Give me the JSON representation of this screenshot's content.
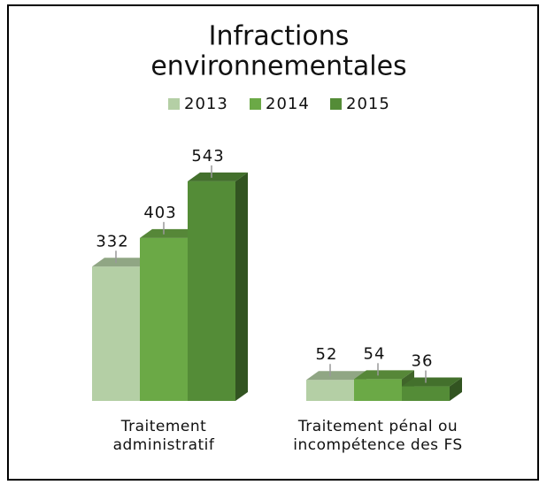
{
  "chart_data": {
    "type": "bar3d",
    "title": [
      "Infractions",
      "environnementales"
    ],
    "categories": [
      "Traitement administratif",
      "Traitement pénal ou incompétence des FS"
    ],
    "series": [
      {
        "name": "2013",
        "color": "#b4cfa5",
        "values": [
          332,
          52
        ]
      },
      {
        "name": "2014",
        "color": "#6ba946",
        "values": [
          403,
          54
        ]
      },
      {
        "name": "2015",
        "color": "#548c37",
        "values": [
          543,
          36
        ]
      }
    ],
    "legend": "top"
  }
}
